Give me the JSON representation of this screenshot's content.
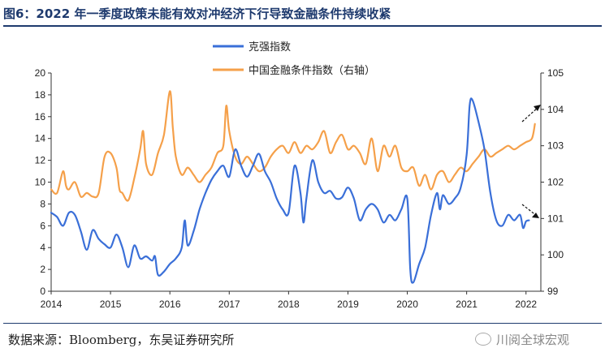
{
  "header": {
    "title": "图6：2022 年一季度政策未能有效对冲经济下行导致金融条件持续收紧"
  },
  "footer": {
    "source": "数据来源：Bloomberg，东吴证券研究所",
    "watermark": "川阅全球宏观"
  },
  "chart_data": {
    "type": "line",
    "title": "",
    "x_ticks": [
      "2014",
      "2015",
      "2016",
      "2017",
      "2018",
      "2019",
      "2020",
      "2021",
      "2022"
    ],
    "x_range": [
      2014.0,
      2022.25
    ],
    "left_axis": {
      "range": [
        0,
        20
      ],
      "ticks": [
        "0",
        "2",
        "4",
        "6",
        "8",
        "10",
        "12",
        "14",
        "16",
        "18",
        "20"
      ]
    },
    "right_axis": {
      "range": [
        99,
        105
      ],
      "ticks": [
        "99",
        "100",
        "101",
        "102",
        "103",
        "104",
        "105"
      ]
    },
    "colors": {
      "keqiang": "#3a6fd8",
      "fci": "#f5a04a"
    },
    "series": [
      {
        "name": "克强指数",
        "axis": "left",
        "points": [
          [
            2014.0,
            7.2
          ],
          [
            2014.1,
            6.8
          ],
          [
            2014.2,
            6.0
          ],
          [
            2014.3,
            7.2
          ],
          [
            2014.4,
            7.0
          ],
          [
            2014.5,
            5.5
          ],
          [
            2014.6,
            3.8
          ],
          [
            2014.7,
            5.6
          ],
          [
            2014.8,
            4.8
          ],
          [
            2014.9,
            4.3
          ],
          [
            2015.0,
            4.0
          ],
          [
            2015.1,
            5.2
          ],
          [
            2015.2,
            4.0
          ],
          [
            2015.3,
            2.2
          ],
          [
            2015.4,
            4.2
          ],
          [
            2015.5,
            3.0
          ],
          [
            2015.6,
            3.2
          ],
          [
            2015.7,
            2.8
          ],
          [
            2015.75,
            3.2
          ],
          [
            2015.8,
            1.5
          ],
          [
            2015.9,
            1.8
          ],
          [
            2016.0,
            2.5
          ],
          [
            2016.1,
            3.0
          ],
          [
            2016.2,
            4.0
          ],
          [
            2016.25,
            6.5
          ],
          [
            2016.3,
            4.2
          ],
          [
            2016.4,
            5.5
          ],
          [
            2016.5,
            7.5
          ],
          [
            2016.6,
            9.0
          ],
          [
            2016.7,
            10.2
          ],
          [
            2016.8,
            11.0
          ],
          [
            2016.9,
            11.5
          ],
          [
            2017.0,
            10.5
          ],
          [
            2017.1,
            13.0
          ],
          [
            2017.2,
            11.5
          ],
          [
            2017.3,
            10.5
          ],
          [
            2017.4,
            11.5
          ],
          [
            2017.5,
            12.6
          ],
          [
            2017.6,
            11.0
          ],
          [
            2017.7,
            10.0
          ],
          [
            2017.8,
            8.5
          ],
          [
            2017.9,
            7.5
          ],
          [
            2018.0,
            7.2
          ],
          [
            2018.1,
            11.5
          ],
          [
            2018.2,
            9.0
          ],
          [
            2018.25,
            6.3
          ],
          [
            2018.3,
            8.5
          ],
          [
            2018.4,
            12.0
          ],
          [
            2018.5,
            10.0
          ],
          [
            2018.6,
            9.0
          ],
          [
            2018.7,
            9.2
          ],
          [
            2018.8,
            8.5
          ],
          [
            2018.9,
            8.6
          ],
          [
            2019.0,
            9.5
          ],
          [
            2019.1,
            8.5
          ],
          [
            2019.2,
            6.5
          ],
          [
            2019.3,
            7.5
          ],
          [
            2019.4,
            8.0
          ],
          [
            2019.5,
            7.5
          ],
          [
            2019.6,
            6.3
          ],
          [
            2019.7,
            7.0
          ],
          [
            2019.8,
            6.5
          ],
          [
            2019.9,
            7.5
          ],
          [
            2020.0,
            8.5
          ],
          [
            2020.05,
            2.0
          ],
          [
            2020.1,
            0.8
          ],
          [
            2020.2,
            2.5
          ],
          [
            2020.3,
            4.0
          ],
          [
            2020.4,
            7.0
          ],
          [
            2020.5,
            9.0
          ],
          [
            2020.55,
            7.5
          ],
          [
            2020.6,
            8.8
          ],
          [
            2020.7,
            8.0
          ],
          [
            2020.8,
            8.5
          ],
          [
            2020.9,
            9.5
          ],
          [
            2021.0,
            12.5
          ],
          [
            2021.05,
            17.0
          ],
          [
            2021.1,
            17.5
          ],
          [
            2021.2,
            15.5
          ],
          [
            2021.3,
            13.0
          ],
          [
            2021.4,
            9.0
          ],
          [
            2021.5,
            6.5
          ],
          [
            2021.6,
            6.0
          ],
          [
            2021.7,
            7.0
          ],
          [
            2021.8,
            6.5
          ],
          [
            2021.9,
            7.0
          ],
          [
            2021.95,
            5.8
          ],
          [
            2022.0,
            6.4
          ],
          [
            2022.05,
            6.5
          ]
        ]
      },
      {
        "name": "中国金融条件指数（右轴）",
        "axis": "right",
        "points": [
          [
            2014.0,
            101.8
          ],
          [
            2014.1,
            101.7
          ],
          [
            2014.2,
            102.3
          ],
          [
            2014.25,
            101.9
          ],
          [
            2014.3,
            101.8
          ],
          [
            2014.4,
            102.0
          ],
          [
            2014.5,
            101.6
          ],
          [
            2014.6,
            101.7
          ],
          [
            2014.7,
            101.6
          ],
          [
            2014.8,
            101.7
          ],
          [
            2014.9,
            102.7
          ],
          [
            2015.0,
            102.8
          ],
          [
            2015.1,
            102.4
          ],
          [
            2015.15,
            101.8
          ],
          [
            2015.2,
            101.7
          ],
          [
            2015.3,
            101.5
          ],
          [
            2015.4,
            102.1
          ],
          [
            2015.5,
            102.9
          ],
          [
            2015.55,
            103.4
          ],
          [
            2015.6,
            102.5
          ],
          [
            2015.7,
            102.2
          ],
          [
            2015.8,
            102.8
          ],
          [
            2015.9,
            103.3
          ],
          [
            2016.0,
            104.5
          ],
          [
            2016.05,
            103.5
          ],
          [
            2016.1,
            102.7
          ],
          [
            2016.2,
            102.2
          ],
          [
            2016.3,
            102.4
          ],
          [
            2016.4,
            102.2
          ],
          [
            2016.5,
            102.0
          ],
          [
            2016.6,
            102.2
          ],
          [
            2016.7,
            102.4
          ],
          [
            2016.8,
            102.8
          ],
          [
            2016.9,
            103.0
          ],
          [
            2016.95,
            104.1
          ],
          [
            2017.0,
            103.4
          ],
          [
            2017.1,
            102.7
          ],
          [
            2017.2,
            102.5
          ],
          [
            2017.3,
            102.7
          ],
          [
            2017.4,
            102.5
          ],
          [
            2017.5,
            102.3
          ],
          [
            2017.6,
            102.4
          ],
          [
            2017.7,
            102.7
          ],
          [
            2017.8,
            102.9
          ],
          [
            2017.9,
            103.0
          ],
          [
            2018.0,
            102.8
          ],
          [
            2018.1,
            103.1
          ],
          [
            2018.2,
            102.8
          ],
          [
            2018.3,
            103.0
          ],
          [
            2018.4,
            102.9
          ],
          [
            2018.5,
            103.1
          ],
          [
            2018.6,
            103.4
          ],
          [
            2018.7,
            102.8
          ],
          [
            2018.8,
            103.1
          ],
          [
            2018.9,
            103.3
          ],
          [
            2019.0,
            102.9
          ],
          [
            2019.1,
            103.0
          ],
          [
            2019.2,
            102.8
          ],
          [
            2019.3,
            102.5
          ],
          [
            2019.4,
            103.2
          ],
          [
            2019.5,
            102.3
          ],
          [
            2019.6,
            103.0
          ],
          [
            2019.7,
            102.7
          ],
          [
            2019.8,
            103.0
          ],
          [
            2019.9,
            102.4
          ],
          [
            2020.0,
            102.3
          ],
          [
            2020.1,
            102.4
          ],
          [
            2020.2,
            101.9
          ],
          [
            2020.3,
            102.2
          ],
          [
            2020.4,
            101.8
          ],
          [
            2020.5,
            102.2
          ],
          [
            2020.6,
            102.3
          ],
          [
            2020.7,
            102.0
          ],
          [
            2020.8,
            102.2
          ],
          [
            2020.9,
            102.4
          ],
          [
            2021.0,
            102.3
          ],
          [
            2021.1,
            102.5
          ],
          [
            2021.2,
            102.7
          ],
          [
            2021.3,
            102.9
          ],
          [
            2021.4,
            102.7
          ],
          [
            2021.5,
            102.8
          ],
          [
            2021.6,
            102.9
          ],
          [
            2021.7,
            103.0
          ],
          [
            2021.8,
            102.9
          ],
          [
            2021.9,
            103.0
          ],
          [
            2022.0,
            103.1
          ],
          [
            2022.1,
            103.2
          ],
          [
            2022.15,
            103.6
          ]
        ]
      }
    ],
    "legend": [
      "克强指数",
      "中国金融条件指数（右轴）"
    ],
    "grid": false
  }
}
